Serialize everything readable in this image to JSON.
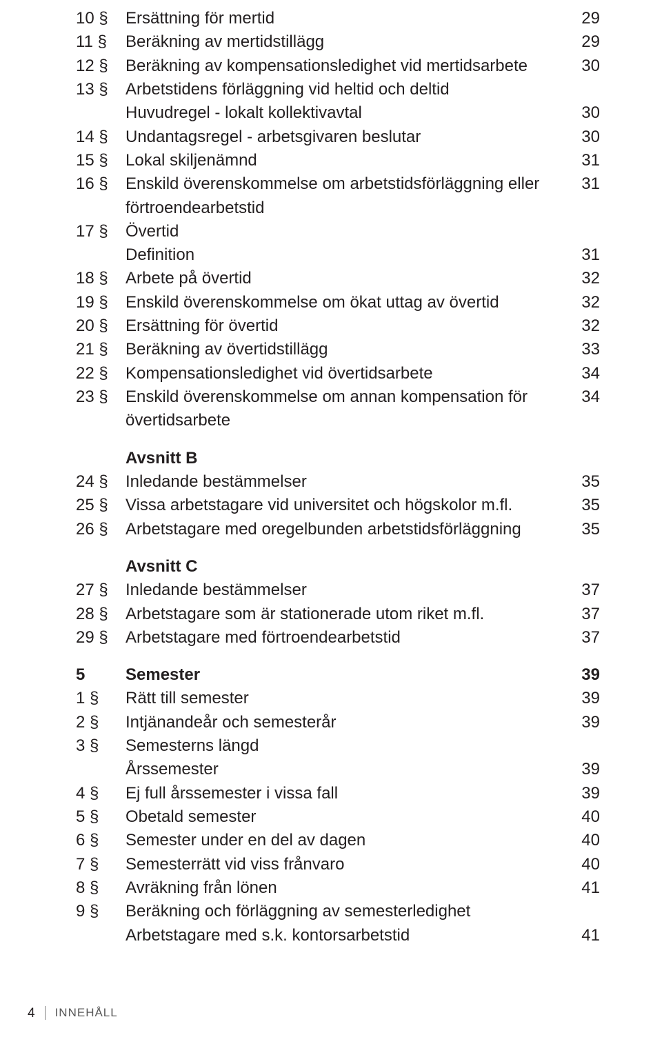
{
  "toc": [
    {
      "sec": "10 §",
      "title": "Ersättning för mertid",
      "page": "29"
    },
    {
      "sec": "11 §",
      "title": "Beräkning av mertidstillägg",
      "page": "29"
    },
    {
      "sec": "12 §",
      "title": "Beräkning av kompensationsledighet vid mertidsarbete",
      "page": "30"
    },
    {
      "sec": "13 §",
      "title": "Arbetstidens förläggning vid heltid och deltid",
      "page": ""
    },
    {
      "sec": "",
      "title": "Huvudregel - lokalt kollektivavtal",
      "page": "30"
    },
    {
      "sec": "14 §",
      "title": "Undantagsregel - arbetsgivaren beslutar",
      "page": "30"
    },
    {
      "sec": "15 §",
      "title": "Lokal skiljenämnd",
      "page": "31"
    },
    {
      "sec": "16 §",
      "title": "Enskild överenskommelse om arbetstidsförläggning eller förtroendearbetstid",
      "page": "31"
    },
    {
      "sec": "17 §",
      "title": "Övertid",
      "page": ""
    },
    {
      "sec": "",
      "title": "Definition",
      "page": "31"
    },
    {
      "sec": "18 §",
      "title": "Arbete på övertid",
      "page": "32"
    },
    {
      "sec": "19 §",
      "title": "Enskild överenskommelse om ökat uttag av övertid",
      "page": "32"
    },
    {
      "sec": "20 §",
      "title": "Ersättning för övertid",
      "page": "32"
    },
    {
      "sec": "21 §",
      "title": "Beräkning av övertidstillägg",
      "page": "33"
    },
    {
      "sec": "22 §",
      "title": "Kompensationsledighet vid övertidsarbete",
      "page": "34"
    },
    {
      "sec": "23 §",
      "title": "Enskild överenskommelse om annan kompensation för övertidsarbete",
      "page": "34"
    },
    {
      "sec": "",
      "title": "Avsnitt B",
      "page": "",
      "bold": true,
      "gap": true
    },
    {
      "sec": "24 §",
      "title": "Inledande bestämmelser",
      "page": "35"
    },
    {
      "sec": "25 §",
      "title": "Vissa arbetstagare vid universitet och högskolor m.fl.",
      "page": "35"
    },
    {
      "sec": "26 §",
      "title": "Arbetstagare med oregelbunden arbetstidsförläggning",
      "page": "35"
    },
    {
      "sec": "",
      "title": "Avsnitt C",
      "page": "",
      "bold": true,
      "gap": true
    },
    {
      "sec": "27 §",
      "title": "Inledande bestämmelser",
      "page": "37"
    },
    {
      "sec": "28 §",
      "title": "Arbetstagare som är stationerade utom riket m.fl.",
      "page": "37"
    },
    {
      "sec": "29 §",
      "title": "Arbetstagare med förtroendearbetstid",
      "page": "37"
    },
    {
      "sec": "5",
      "title": "Semester",
      "page": "39",
      "bold": true,
      "gap": true
    },
    {
      "sec": "1 §",
      "title": "Rätt till semester",
      "page": "39"
    },
    {
      "sec": "2 §",
      "title": "Intjänandeår och semesterår",
      "page": "39"
    },
    {
      "sec": "3 §",
      "title": "Semesterns längd",
      "page": ""
    },
    {
      "sec": "",
      "title": "Årssemester",
      "page": "39"
    },
    {
      "sec": "4 §",
      "title": "Ej full årssemester i vissa fall",
      "page": "39"
    },
    {
      "sec": "5 §",
      "title": "Obetald semester",
      "page": "40"
    },
    {
      "sec": "6 §",
      "title": "Semester under en del av dagen",
      "page": "40"
    },
    {
      "sec": "7 §",
      "title": "Semesterrätt vid viss frånvaro",
      "page": "40"
    },
    {
      "sec": "8 §",
      "title": "Avräkning från lönen",
      "page": "41"
    },
    {
      "sec": "9 §",
      "title": "Beräkning och förläggning av semesterledighet",
      "page": ""
    },
    {
      "sec": "",
      "title": "Arbetstagare med s.k. kontorsarbetstid",
      "page": "41"
    }
  ],
  "footer": {
    "page_number": "4",
    "label": "INNEHÅLL"
  }
}
